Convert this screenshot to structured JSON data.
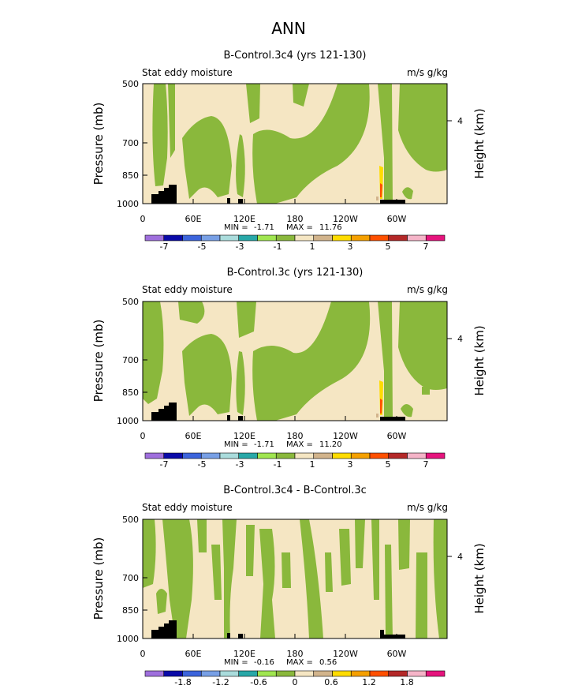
{
  "title": "ANN",
  "palette_colors": [
    "#9f6fdd",
    "#0a0aa8",
    "#3c64dc",
    "#78a0e6",
    "#aadcdc",
    "#28a8a8",
    "#a0e650",
    "#8ab83c",
    "#f5e6c3",
    "#d2b48c",
    "#ffdc00",
    "#f5a000",
    "#ff5000",
    "#b42828",
    "#f5b4c8",
    "#e6147d"
  ],
  "colors": {
    "positive_fill": "#f5e6c3",
    "negative_fill": "#8ab83c",
    "land": "#000000",
    "high_1": "#ffdc00",
    "high_2": "#ff5000",
    "high_3": "#b42828"
  },
  "chart_data": [
    {
      "type": "heatmap",
      "title": "B-Control.3c4 (yrs 121-130)",
      "field_label": "Stat eddy moisture",
      "units": "m/s g/kg",
      "ylabel": "Pressure (mb)",
      "y2label": "Height (km)",
      "xticks": [
        "0",
        "60E",
        "120E",
        "180",
        "120W",
        "60W"
      ],
      "yticks": [
        "500",
        "700",
        "850",
        "1000"
      ],
      "y2ticks": [
        "4"
      ],
      "min_label": "MIN =",
      "min": "-1.71",
      "max_label": "MAX =",
      "max": "11.76",
      "colorbar_labels": [
        "-7",
        "-5",
        "-3",
        "-1",
        "1",
        "3",
        "5",
        "7"
      ]
    },
    {
      "type": "heatmap",
      "title": "B-Control.3c (yrs 121-130)",
      "field_label": "Stat eddy moisture",
      "units": "m/s g/kg",
      "ylabel": "Pressure (mb)",
      "y2label": "Height (km)",
      "xticks": [
        "0",
        "60E",
        "120E",
        "180",
        "120W",
        "60W"
      ],
      "yticks": [
        "500",
        "700",
        "850",
        "1000"
      ],
      "y2ticks": [
        "4"
      ],
      "min_label": "MIN =",
      "min": "-1.71",
      "max_label": "MAX =",
      "max": "11.20",
      "colorbar_labels": [
        "-7",
        "-5",
        "-3",
        "-1",
        "1",
        "3",
        "5",
        "7"
      ]
    },
    {
      "type": "heatmap",
      "title": "B-Control.3c4 - B-Control.3c",
      "field_label": "Stat eddy moisture",
      "units": "m/s g/kg",
      "ylabel": "Pressure (mb)",
      "y2label": "Height (km)",
      "xticks": [
        "0",
        "60E",
        "120E",
        "180",
        "120W",
        "60W"
      ],
      "yticks": [
        "500",
        "700",
        "850",
        "1000"
      ],
      "y2ticks": [
        "4"
      ],
      "min_label": "MIN =",
      "min": "-0.16",
      "max_label": "MAX =",
      "max": "0.56",
      "colorbar_labels": [
        "-1.8",
        "-1.2",
        "-0.6",
        "0",
        "0.6",
        "1.2",
        "1.8"
      ]
    }
  ]
}
